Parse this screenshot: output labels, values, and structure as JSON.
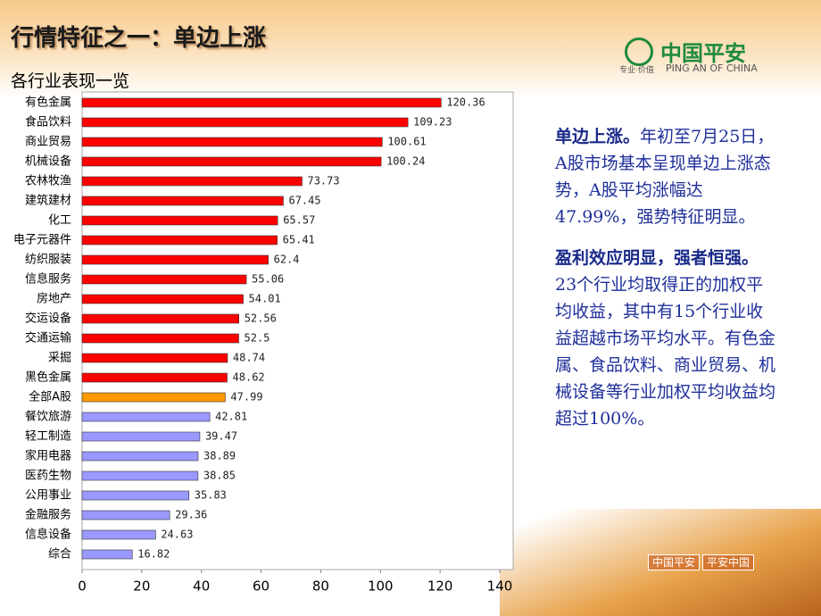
{
  "slide": {
    "title": "行情特征之一：单边上涨",
    "subtitle": "各行业表现一览",
    "logo": {
      "name": "中国平安",
      "english": "PING AN OF CHINA",
      "slogan": "专业·价值"
    },
    "footer": [
      "中国平安",
      "平安中国"
    ],
    "paragraphs": [
      {
        "heading": "单边上涨。",
        "body": "年初至7月25日，A股市场基本呈现单边上涨态势，A股平均涨幅达47.99%，强势特征明显。"
      },
      {
        "heading": "盈利效应明显，强者恒强。",
        "body": "23个行业均取得正的加权平均收益，其中有15个行业收益超越市场平均水平。有色金属、食品饮料、商业贸易、机械设备等行业加权平均收益均超过100%。"
      }
    ]
  },
  "chart_data": {
    "type": "hbar",
    "categories": [
      "有色金属",
      "食品饮料",
      "商业贸易",
      "机械设备",
      "农林牧渔",
      "建筑建材",
      "化工",
      "电子元器件",
      "纺织服装",
      "信息服务",
      "房地产",
      "交运设备",
      "交通运输",
      "采掘",
      "黑色金属",
      "全部A股",
      "餐饮旅游",
      "轻工制造",
      "家用电器",
      "医药生物",
      "公用事业",
      "金融服务",
      "信息设备",
      "综合"
    ],
    "values": [
      120.36,
      109.23,
      100.61,
      100.24,
      73.73,
      67.45,
      65.57,
      65.41,
      62.4,
      55.06,
      54.01,
      52.56,
      52.5,
      48.74,
      48.62,
      47.99,
      42.81,
      39.47,
      38.89,
      38.85,
      35.83,
      29.36,
      24.63,
      16.82
    ],
    "colors": [
      "#ff0000",
      "#ff0000",
      "#ff0000",
      "#ff0000",
      "#ff0000",
      "#ff0000",
      "#ff0000",
      "#ff0000",
      "#ff0000",
      "#ff0000",
      "#ff0000",
      "#ff0000",
      "#ff0000",
      "#ff0000",
      "#ff0000",
      "#ff9900",
      "#9999ff",
      "#9999ff",
      "#9999ff",
      "#9999ff",
      "#9999ff",
      "#9999ff",
      "#9999ff",
      "#9999ff"
    ],
    "xlim": [
      0,
      140
    ],
    "xticks": [
      0,
      20,
      40,
      60,
      80,
      100,
      120,
      140
    ]
  }
}
